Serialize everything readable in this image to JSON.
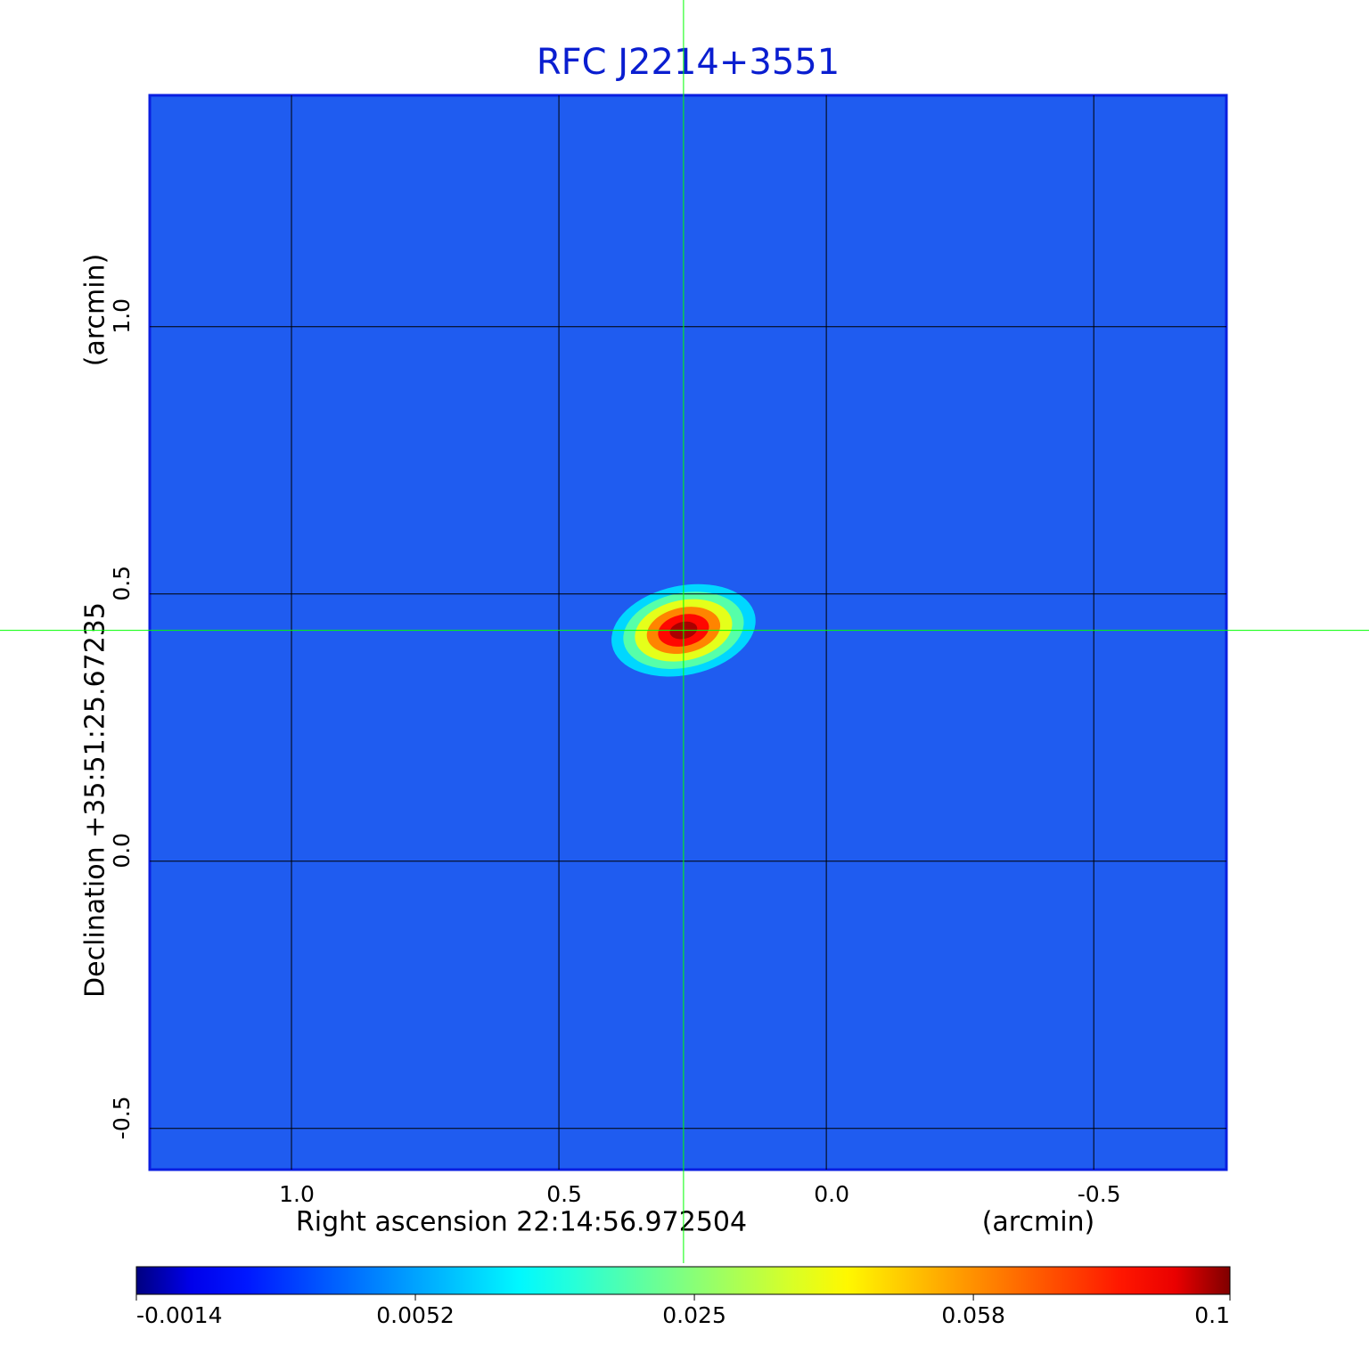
{
  "chart_data": {
    "type": "image",
    "title": "RFC J2214+3551",
    "x_label": "Right ascension  22:14:56.972504",
    "x_unit": "(arcmin)",
    "y_label": "Declination  +35:51:25.67235",
    "y_unit": "(arcmin)",
    "xlim": [
      1.265,
      -0.748
    ],
    "ylim": [
      -0.577,
      1.433
    ],
    "xticks": [
      {
        "value": 1.0,
        "label": "1.0"
      },
      {
        "value": 0.5,
        "label": "0.5"
      },
      {
        "value": 0.0,
        "label": "0.0"
      },
      {
        "value": -0.5,
        "label": "-0.5"
      }
    ],
    "yticks": [
      {
        "value": -0.5,
        "label": "-0.5"
      },
      {
        "value": 0.0,
        "label": "0.0"
      },
      {
        "value": 0.5,
        "label": "0.5"
      },
      {
        "value": 1.0,
        "label": "1.0"
      }
    ],
    "grid": true,
    "colormap": "jet",
    "colorbar_scale": "sqrt",
    "clim": [
      -0.0014,
      0.1
    ],
    "colorbar_ticks": [
      -0.0014,
      0.0052,
      0.025,
      0.058,
      0.1
    ],
    "source": {
      "x": 0.267,
      "y": 0.432,
      "peak": 0.1,
      "major": 0.09,
      "minor": 0.055
    },
    "crosshair": {
      "x": 0.267,
      "y": 0.432,
      "color": "#00ff00"
    }
  }
}
